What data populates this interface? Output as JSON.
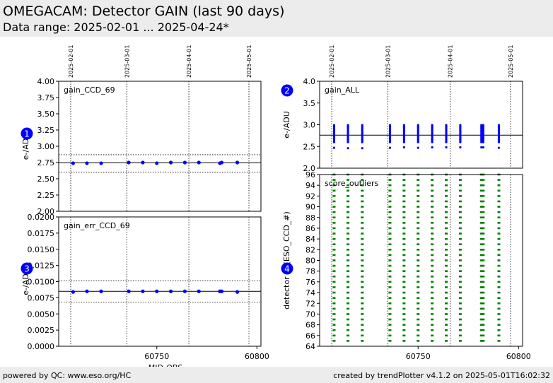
{
  "header": {
    "title": "OMEGACAM: Detector GAIN (last 90 days)",
    "subtitle": "Data range: 2025-02-01 ... 2025-04-24*"
  },
  "footer": {
    "left": "powered by QC: www.eso.org/HC",
    "right": "created by trendPlotter v4.1.2 on 2025-05-01T16:02:32"
  },
  "colors": {
    "data": "#0000ff",
    "outliers": "#008000",
    "band": "#ececec"
  },
  "chart_data": [
    {
      "type": "scatter",
      "badge": "1",
      "label": "gain_CCD_69",
      "ylabel": "e-/ADU",
      "xlim": [
        60701,
        60802
      ],
      "ylim": [
        2.0,
        4.0
      ],
      "yticks": [
        "2.00",
        "2.25",
        "2.50",
        "2.75",
        "3.00",
        "3.25",
        "3.50",
        "3.75",
        "4.00"
      ],
      "xticks": [],
      "date_labels": [
        {
          "x": 60707,
          "text": "2025-02-01"
        },
        {
          "x": 60735,
          "text": "2025-03-01"
        },
        {
          "x": 60766,
          "text": "2025-04-01"
        },
        {
          "x": 60796,
          "text": "2025-05-01"
        }
      ],
      "reference": {
        "mean": 2.745,
        "upper": 2.87,
        "lower": 2.6
      },
      "series": [
        {
          "x": [
            60708.2,
            60715.1,
            60722.2,
            60736.0,
            60743.0,
            60750.0,
            60757.0,
            60764.0,
            60771.0,
            60781.5,
            60782.4,
            60790.2
          ],
          "y": [
            2.74,
            2.74,
            2.74,
            2.75,
            2.75,
            2.74,
            2.75,
            2.75,
            2.75,
            2.74,
            2.75,
            2.75
          ]
        }
      ]
    },
    {
      "type": "scatter",
      "badge": "2",
      "label": "gain_ALL",
      "ylabel": "e-/ADU",
      "xlim": [
        60701,
        60802
      ],
      "ylim": [
        2.0,
        4.0
      ],
      "yticks": [
        "2.0",
        "2.5",
        "3.0",
        "3.5",
        "4.0"
      ],
      "xticks": [],
      "date_labels": [
        {
          "x": 60707,
          "text": "2025-02-01"
        },
        {
          "x": 60735,
          "text": "2025-03-01"
        },
        {
          "x": 60766,
          "text": "2025-04-01"
        },
        {
          "x": 60796,
          "text": "2025-05-01"
        }
      ],
      "reference": {
        "mean": 2.76
      },
      "series": [
        {
          "x": [
            60708.2,
            60715.1,
            60722.2,
            60736.0,
            60743.0,
            60750.0,
            60757.0,
            60764.0,
            60771.0,
            60781.5,
            60782.4,
            60790.2
          ],
          "y_min": [
            2.6,
            2.6,
            2.6,
            2.6,
            2.6,
            2.6,
            2.6,
            2.6,
            2.6,
            2.6,
            2.6,
            2.6
          ],
          "y_max": [
            2.99,
            2.99,
            2.99,
            3.0,
            2.99,
            2.99,
            2.99,
            2.99,
            2.99,
            2.99,
            2.99,
            2.99
          ],
          "y_low": [
            2.47,
            2.46,
            2.46,
            2.47,
            2.48,
            2.47,
            2.48,
            2.48,
            2.48,
            2.48,
            2.48,
            2.47
          ]
        }
      ]
    },
    {
      "type": "scatter",
      "badge": "3",
      "label": "gain_err_CCD_69",
      "ylabel": "e-/ADU",
      "xlabel": "MJD-OBS",
      "xlim": [
        60701,
        60802
      ],
      "ylim": [
        0.0,
        0.02
      ],
      "yticks": [
        "0.0000",
        "0.0025",
        "0.0050",
        "0.0075",
        "0.0100",
        "0.0125",
        "0.0150",
        "0.0175",
        "0.0200"
      ],
      "xticks": [
        "60750",
        "60800"
      ],
      "date_labels": [
        {
          "x": 60707,
          "text": ""
        },
        {
          "x": 60735,
          "text": ""
        },
        {
          "x": 60766,
          "text": ""
        },
        {
          "x": 60796,
          "text": ""
        }
      ],
      "reference": {
        "mean": 0.0085,
        "upper": 0.0101,
        "lower": 0.0068
      },
      "series": [
        {
          "x": [
            60708.2,
            60715.1,
            60722.2,
            60736.0,
            60743.0,
            60750.0,
            60757.0,
            60764.0,
            60771.0,
            60781.5,
            60782.4,
            60790.2
          ],
          "y": [
            0.0084,
            0.0085,
            0.0085,
            0.0085,
            0.0085,
            0.0085,
            0.0085,
            0.0085,
            0.0085,
            0.0085,
            0.0085,
            0.0084
          ]
        }
      ]
    },
    {
      "type": "scatter",
      "badge": "4",
      "label": "score_outliers",
      "ylabel": "detector id (ESO_CCD_#)",
      "xlim": [
        60701,
        60802
      ],
      "ylim": [
        64,
        96
      ],
      "yticks": [
        "64",
        "66",
        "68",
        "70",
        "72",
        "74",
        "76",
        "78",
        "80",
        "82",
        "84",
        "86",
        "88",
        "90",
        "92",
        "94",
        "96"
      ],
      "xticks": [
        "60750",
        "60800"
      ],
      "date_labels": [
        {
          "x": 60707,
          "text": ""
        },
        {
          "x": 60735,
          "text": ""
        },
        {
          "x": 60766,
          "text": ""
        },
        {
          "x": 60796,
          "text": ""
        }
      ],
      "series": [
        {
          "x": [
            60708.2,
            60715.1,
            60722.2,
            60736.0,
            60743.0,
            60750.0,
            60757.0,
            60764.0,
            60771.0,
            60781.5,
            60782.4,
            60790.2
          ],
          "detectors": [
            65,
            96
          ]
        }
      ]
    }
  ]
}
